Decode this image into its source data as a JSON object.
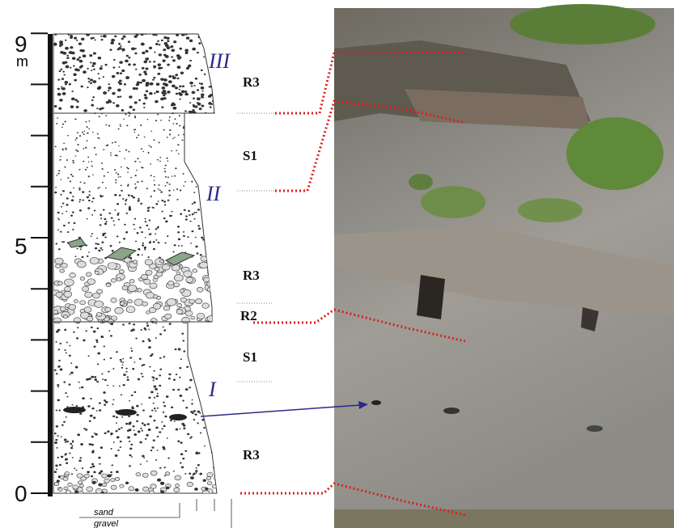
{
  "scale": {
    "top": "9",
    "unit": "m",
    "middle": "5",
    "bottom": "0"
  },
  "units": {
    "upper": "III",
    "middle": "II",
    "lower": "I"
  },
  "facies": [
    "R3",
    "S1",
    "R3",
    "R2",
    "S1",
    "R3"
  ],
  "legend": {
    "fine": "sand",
    "coarse": "gravel"
  }
}
